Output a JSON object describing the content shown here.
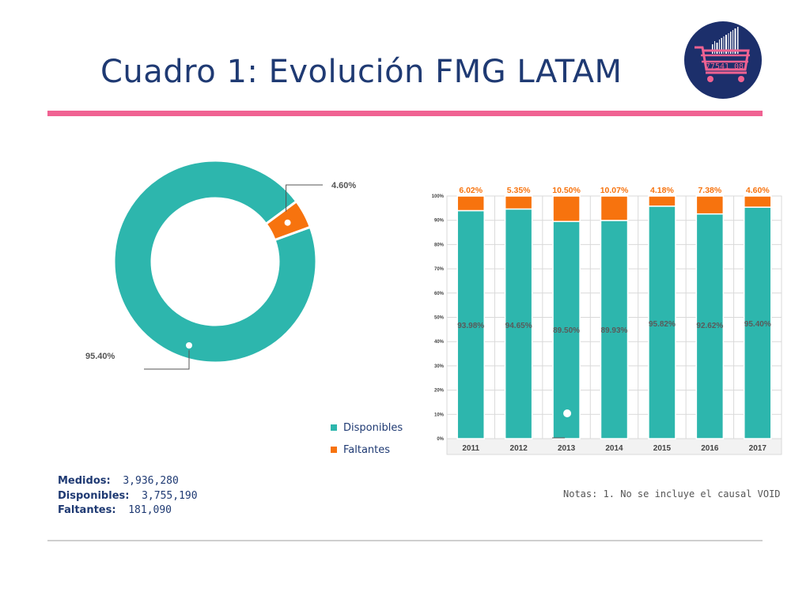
{
  "slide": {
    "title": "Cuadro 1:  Evolución FMG LATAM",
    "colors": {
      "accent_pink": "#f06292",
      "title_blue": "#1f3a73",
      "teal": "#2db6ad",
      "orange": "#f7730e",
      "logo_navy": "#1c2f6b"
    }
  },
  "logo": {
    "icon": "shopping-cart-barcode-icon",
    "text": "77541 08"
  },
  "donut": {
    "slices": [
      {
        "name": "Disponibles",
        "value": 95.4,
        "label": "95.40%",
        "color": "#2db6ad"
      },
      {
        "name": "Faltantes",
        "value": 4.6,
        "label": "4.60%",
        "color": "#f7730e"
      }
    ]
  },
  "legend": [
    {
      "label": "Disponibles",
      "color": "#2db6ad"
    },
    {
      "label": "Faltantes",
      "color": "#f7730e"
    }
  ],
  "chart_data": [
    {
      "type": "pie",
      "categories": [
        "Disponibles",
        "Faltantes"
      ],
      "values": [
        95.4,
        4.6
      ],
      "labels": [
        "95.40%",
        "4.60%"
      ]
    },
    {
      "type": "bar",
      "stacked": true,
      "categories": [
        "2011",
        "2012",
        "2013",
        "2014",
        "2015",
        "2016",
        "2017"
      ],
      "series": [
        {
          "name": "Disponibles",
          "values": [
            93.98,
            94.65,
            89.5,
            89.93,
            95.82,
            92.62,
            95.4
          ],
          "labels": [
            "93.98%",
            "94.65%",
            "89.50%",
            "89.93%",
            "95.82%",
            "92.62%",
            "95.40%"
          ],
          "color": "#2db6ad"
        },
        {
          "name": "Faltantes",
          "values": [
            6.02,
            5.35,
            10.5,
            10.07,
            4.18,
            7.38,
            4.6
          ],
          "labels": [
            "6.02%",
            "5.35%",
            "10.50%",
            "10.07%",
            "4.18%",
            "7.38%",
            "4.60%"
          ],
          "color": "#f7730e"
        }
      ],
      "yticks": [
        "0%",
        "10%",
        "20%",
        "30%",
        "40%",
        "50%",
        "60%",
        "70%",
        "80%",
        "90%",
        "100%"
      ],
      "ylim": [
        0,
        100
      ],
      "grid": true
    }
  ],
  "stats": [
    {
      "label": "Medidos:",
      "value": "3,936,280"
    },
    {
      "label": "Disponibles:",
      "value": "3,755,190"
    },
    {
      "label": "Faltantes:",
      "value": "181,090"
    }
  ],
  "notes": "Notas:  1. No se incluye el causal VOID"
}
